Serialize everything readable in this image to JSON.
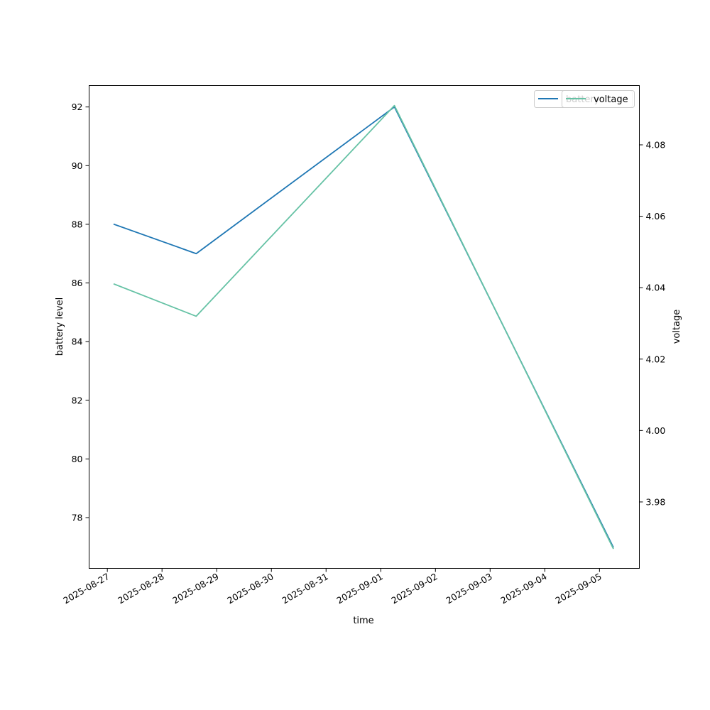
{
  "chart_data": {
    "type": "line",
    "x_type": "date",
    "xlabel": "time",
    "x_ticks": [
      "2025-08-27",
      "2025-08-28",
      "2025-08-29",
      "2025-08-30",
      "2025-08-31",
      "2025-09-01",
      "2025-09-02",
      "2025-09-03",
      "2025-09-04",
      "2025-09-05"
    ],
    "xlim": [
      "2025-08-26 16:00",
      "2025-09-05 17:30"
    ],
    "left_axis": {
      "label": "battery level",
      "ylim": [
        76.27,
        92.73
      ],
      "ticks": [
        78,
        80,
        82,
        84,
        86,
        88,
        90,
        92
      ]
    },
    "right_axis": {
      "label": "voltage",
      "ylim": [
        3.9614,
        4.0966
      ],
      "ticks": [
        3.98,
        4.0,
        4.02,
        4.04,
        4.06,
        4.08
      ],
      "tick_labels": [
        "3.98",
        "4.00",
        "4.02",
        "4.04",
        "4.06",
        "4.08"
      ]
    },
    "series": [
      {
        "name": "battery",
        "axis": "left",
        "color": "#1f77b4",
        "x": [
          "2025-08-27 03:00",
          "2025-08-28 15:00",
          "2025-09-01 06:00",
          "2025-09-05 06:00"
        ],
        "y": [
          88,
          87,
          92,
          77
        ]
      },
      {
        "name": "voltage",
        "axis": "right",
        "color": "#66c2a5",
        "x": [
          "2025-08-27 03:00",
          "2025-08-28 15:00",
          "2025-09-01 06:00",
          "2025-09-05 06:00"
        ],
        "y": [
          4.041,
          4.032,
          4.091,
          3.967
        ]
      }
    ],
    "legend": {
      "placement": "upper-right",
      "entries": [
        {
          "label": "battery",
          "color": "#1f77b4"
        },
        {
          "label": "voltage",
          "color": "#66c2a5"
        }
      ]
    },
    "grid": false
  }
}
